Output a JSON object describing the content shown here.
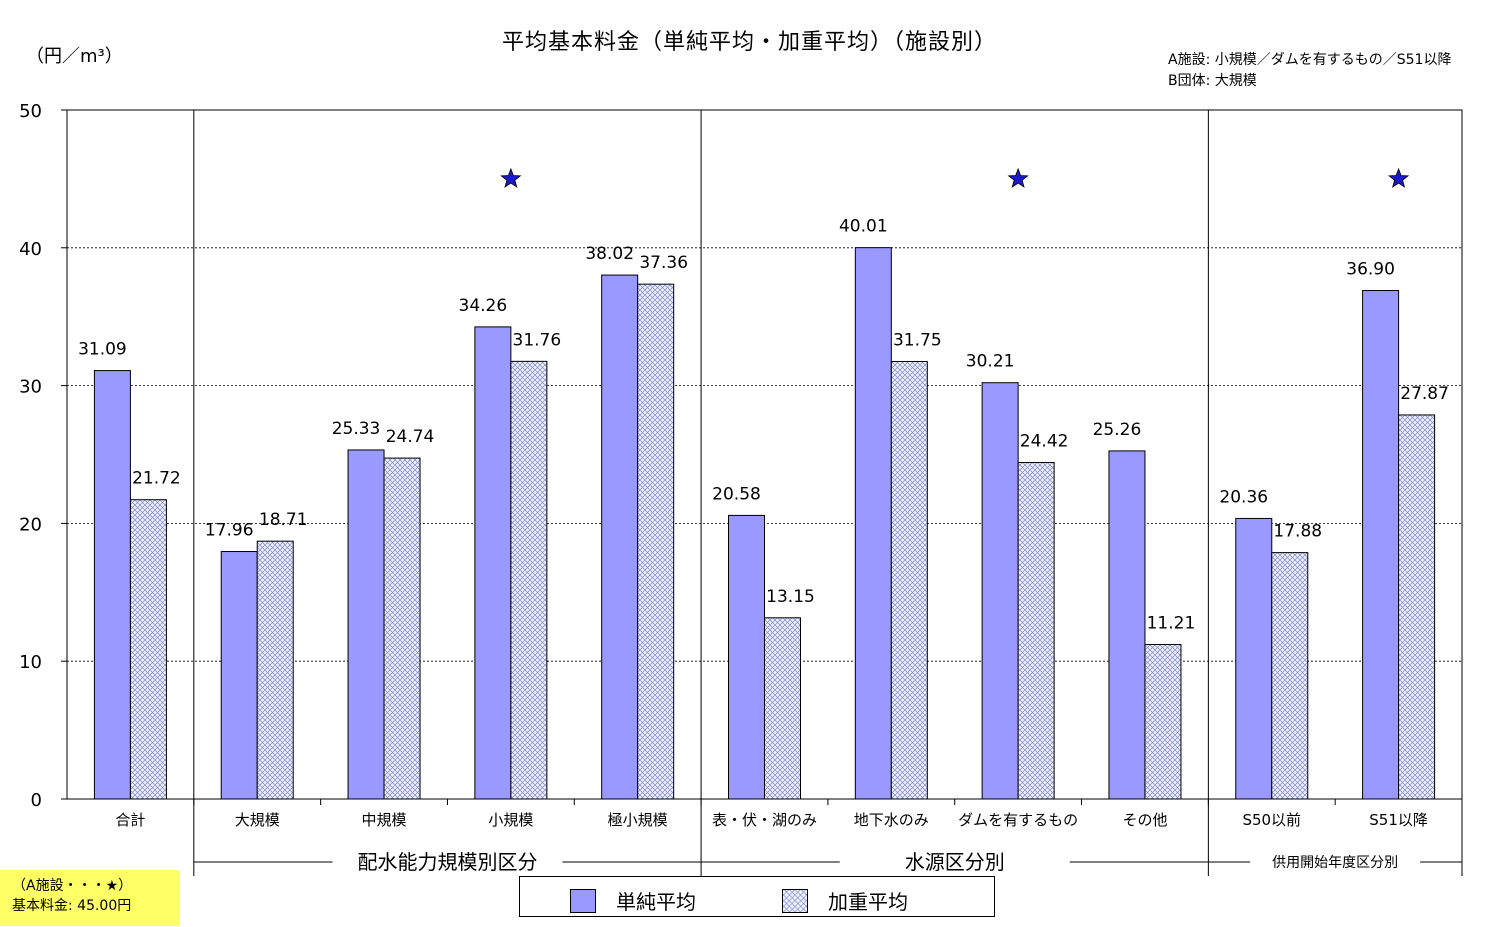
{
  "chart_data": {
    "type": "bar",
    "title": "平均基本料金（単純平均・加重平均）（施設別）",
    "ylabel": "（円／m³）",
    "ylim": [
      0,
      50
    ],
    "yticks": [
      0,
      10,
      20,
      30,
      40,
      50
    ],
    "grid": true,
    "legend_position": "bottom",
    "categories": [
      "合計",
      "大規模",
      "中規模",
      "小規模",
      "極小規模",
      "表・伏・湖のみ",
      "地下水のみ",
      "ダムを有するもの",
      "その他",
      "S50以前",
      "S51以降"
    ],
    "series": [
      {
        "name": "単純平均",
        "values": [
          31.09,
          17.96,
          25.33,
          34.26,
          38.02,
          20.58,
          40.01,
          30.21,
          25.26,
          20.36,
          36.9
        ],
        "labels": [
          "31.09",
          "17.96",
          "25.33",
          "34.26",
          "38.02",
          "20.58",
          "40.01",
          "30.21",
          "25.26",
          "20.36",
          "36.90"
        ]
      },
      {
        "name": "加重平均",
        "values": [
          21.72,
          18.71,
          24.74,
          31.76,
          37.36,
          13.15,
          31.75,
          24.42,
          11.21,
          17.88,
          27.87
        ],
        "labels": [
          "21.72",
          "18.71",
          "24.74",
          "31.76",
          "37.36",
          "13.15",
          "31.75",
          "24.42",
          "11.21",
          "17.88",
          "27.87"
        ]
      }
    ],
    "groups": [
      {
        "label": "配水能力規模別区分",
        "start": 1,
        "end": 4
      },
      {
        "label": "水源区分別",
        "start": 5,
        "end": 8
      },
      {
        "label": "供用開始年度区分別",
        "start": 9,
        "end": 10
      }
    ],
    "markers": [
      {
        "category_index": 3,
        "value": 45.0
      },
      {
        "category_index": 7,
        "value": 45.0
      },
      {
        "category_index": 10,
        "value": 45.0
      }
    ],
    "colors": {
      "simple": "#9999ff",
      "weighted_base": "#eef0ff",
      "weighted_hatch": "#7f88cc",
      "marker": "#1a1acc",
      "note_box": "#ffff66"
    }
  },
  "notes": {
    "line1": "A施設: 小規模／ダムを有するもの／S51以降",
    "line2": "B団体: 大規模"
  },
  "note_box": {
    "line1": "（A施設・・・★）",
    "line2": "基本料金: 45.00円"
  },
  "legend": {
    "simple": "単純平均",
    "weighted": "加重平均"
  }
}
